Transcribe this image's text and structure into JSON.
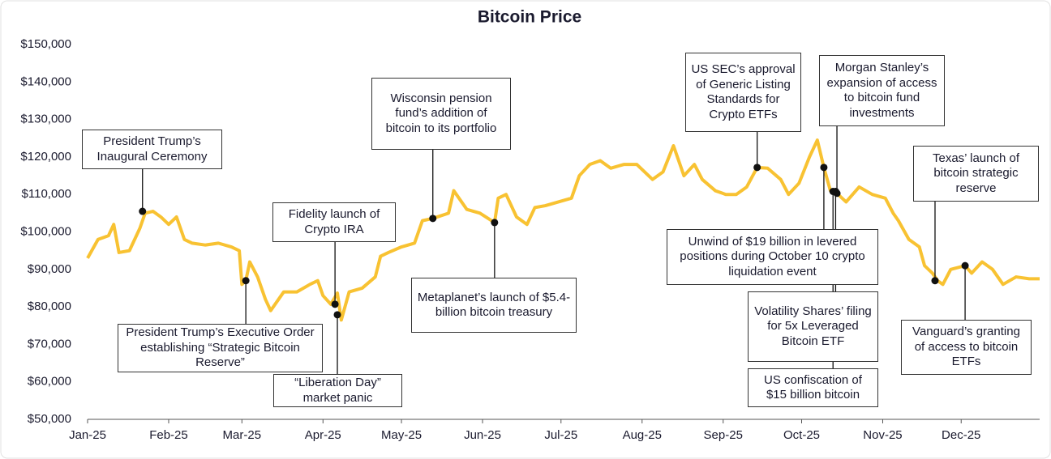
{
  "chart_data": {
    "type": "line",
    "title": "Bitcoin Price",
    "x": [
      0,
      4,
      8,
      10,
      12,
      16,
      20,
      22,
      25,
      28,
      31,
      34,
      37,
      40,
      45,
      50,
      55,
      58,
      59,
      60.5,
      62,
      65,
      68,
      70,
      75,
      80,
      85,
      88,
      90,
      93,
      95.5,
      97,
      100,
      105,
      110,
      112,
      115,
      120,
      125,
      128,
      132,
      138,
      140,
      145,
      150,
      155.6,
      157,
      160,
      164,
      168,
      171,
      175,
      180,
      185,
      188,
      192,
      196,
      200,
      205,
      210,
      213,
      216,
      220,
      224,
      228,
      232,
      235,
      240,
      244,
      248,
      252,
      256,
      260,
      265,
      268,
      272,
      276,
      279,
      281.5,
      284,
      286.5,
      290,
      295,
      300,
      305,
      308,
      310,
      314,
      318,
      320,
      323,
      325,
      327,
      330,
      335.5,
      338,
      342,
      346,
      350,
      355,
      360,
      364
    ],
    "series": [
      {
        "name": "Bitcoin Price",
        "color": "#f8c232",
        "values": [
          93000,
          98000,
          99000,
          102000,
          94500,
          95000,
          101000,
          105000,
          105500,
          104000,
          102000,
          104000,
          98000,
          97000,
          96500,
          97000,
          96000,
          95000,
          86000,
          87000,
          92000,
          88000,
          82000,
          79000,
          84000,
          84000,
          86000,
          87000,
          83000,
          80700,
          83700,
          76500,
          84000,
          85000,
          88000,
          93500,
          94500,
          96000,
          97000,
          103000,
          103600,
          105000,
          111000,
          106000,
          105000,
          102500,
          109000,
          110000,
          104000,
          102000,
          106500,
          107000,
          108000,
          109000,
          115000,
          118000,
          119000,
          117000,
          118000,
          118000,
          116000,
          114000,
          116000,
          123000,
          115000,
          118000,
          114000,
          111000,
          110000,
          110000,
          112000,
          117200,
          117000,
          114000,
          110000,
          113000,
          120000,
          124500,
          117200,
          111000,
          110300,
          108000,
          112000,
          110000,
          109000,
          105000,
          103000,
          98000,
          96000,
          91000,
          89000,
          87000,
          86000,
          90000,
          91000,
          89000,
          92000,
          90000,
          86000,
          88000,
          87500,
          87500
        ]
      }
    ],
    "xlim": [
      0,
      364
    ],
    "xticks": [
      {
        "value": 0,
        "label": "Jan-25"
      },
      {
        "value": 31,
        "label": "Feb-25"
      },
      {
        "value": 59,
        "label": "Mar-25"
      },
      {
        "value": 90,
        "label": "Apr-25"
      },
      {
        "value": 120,
        "label": "May-25"
      },
      {
        "value": 151,
        "label": "Jun-25"
      },
      {
        "value": 181,
        "label": "Jul-25"
      },
      {
        "value": 212,
        "label": "Aug-25"
      },
      {
        "value": 243,
        "label": "Sep-25"
      },
      {
        "value": 273,
        "label": "Oct-25"
      },
      {
        "value": 304,
        "label": "Nov-25"
      },
      {
        "value": 334,
        "label": "Dec-25"
      }
    ],
    "ylim": [
      50000,
      150000
    ],
    "yticks": [
      {
        "value": 50000,
        "label": "$50,000"
      },
      {
        "value": 60000,
        "label": "$60,000"
      },
      {
        "value": 70000,
        "label": "$70,000"
      },
      {
        "value": 80000,
        "label": "$80,000"
      },
      {
        "value": 90000,
        "label": "$90,000"
      },
      {
        "value": 100000,
        "label": "$100,000"
      },
      {
        "value": 110000,
        "label": "$110,000"
      },
      {
        "value": 120000,
        "label": "$120,000"
      },
      {
        "value": 130000,
        "label": "$130,000"
      },
      {
        "value": 140000,
        "label": "$140,000"
      },
      {
        "value": 150000,
        "label": "$150,000"
      }
    ],
    "annotations": [
      {
        "text": "President Trump’s Inaugural Ceremony",
        "x": 21,
        "y": 105500
      },
      {
        "text": "President Trump’s Executive Order establishing “Strategic Bitcoin Reserve”",
        "x": 60.5,
        "y": 87000
      },
      {
        "text": "Fidelity launch of Crypto IRA",
        "x": 94.6,
        "y": 80700
      },
      {
        "text": "“Liberation Day” market panic",
        "x": 95.5,
        "y": 77900
      },
      {
        "text": "Wisconsin pension fund’s addition of bitcoin to its portfolio",
        "x": 132,
        "y": 103600
      },
      {
        "text": "Metaplanet’s launch of $5.4-billion bitcoin treasury",
        "x": 155.6,
        "y": 102500
      },
      {
        "text": "US SEC’s approval of Generic Listing Standards for Crypto ETFs",
        "x": 256,
        "y": 117200
      },
      {
        "text": "Morgan Stanley’s expansion of access to bitcoin fund investments",
        "x": 286.5,
        "y": 110300
      },
      {
        "text": "Unwind of $19 billion in levered positions during October 10 crypto liquidation event",
        "x": 281.5,
        "y": 117200
      },
      {
        "text": "Volatility Shares’ filing for 5x Leveraged Bitcoin ETF",
        "x": 286,
        "y": 110800
      },
      {
        "text": "US confiscation of $15 billion bitcoin",
        "x": 285,
        "y": 110800
      },
      {
        "text": "Texas’ launch of bitcoin strategic reserve",
        "x": 324,
        "y": 87000
      },
      {
        "text": "Vanguard’s granting of access to bitcoin ETFs",
        "x": 335.5,
        "y": 91000
      }
    ]
  }
}
